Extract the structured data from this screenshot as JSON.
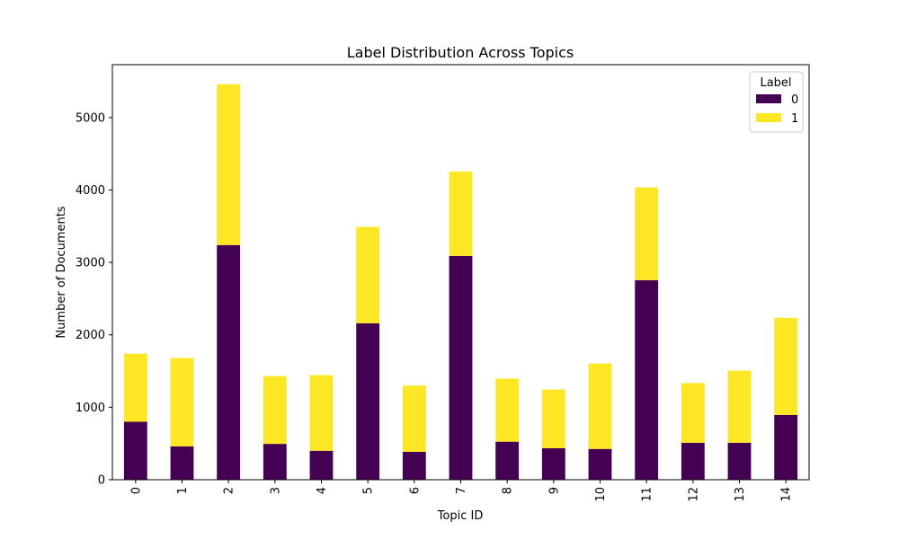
{
  "chart_data": {
    "type": "bar",
    "stacked": true,
    "title": "Label Distribution Across Topics",
    "xlabel": "Topic ID",
    "ylabel": "Number of Documents",
    "categories": [
      "0",
      "1",
      "2",
      "3",
      "4",
      "5",
      "6",
      "7",
      "8",
      "9",
      "10",
      "11",
      "12",
      "13",
      "14"
    ],
    "series": [
      {
        "name": "0",
        "color": "#440154",
        "values": [
          800,
          460,
          3240,
          495,
          400,
          2160,
          385,
          3090,
          525,
          435,
          425,
          2755,
          510,
          510,
          895
        ]
      },
      {
        "name": "1",
        "color": "#fde725",
        "values": [
          940,
          1220,
          2220,
          935,
          1045,
          1330,
          915,
          1165,
          870,
          810,
          1180,
          1280,
          825,
          995,
          1340
        ]
      }
    ],
    "ylim": [
      0,
      5730
    ],
    "yticks": [
      0,
      1000,
      2000,
      3000,
      4000,
      5000
    ],
    "grid": false,
    "legend": {
      "title": "Label",
      "position": "top-right"
    }
  }
}
